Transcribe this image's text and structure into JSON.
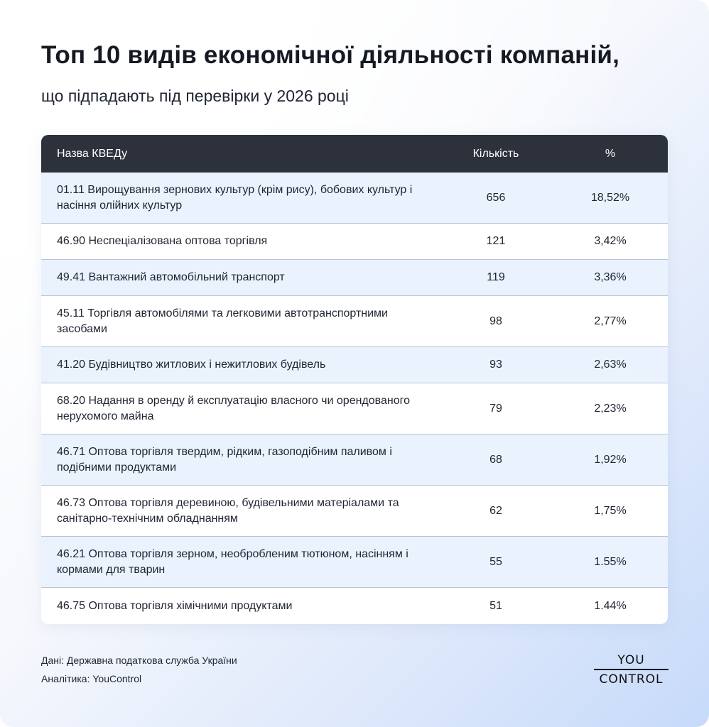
{
  "title": "Топ 10 видів економічної діяльності компаній,",
  "subtitle": "що підпадають під перевірки у 2026 році",
  "table": {
    "headers": [
      "Назва КВЕДу",
      "Кількість",
      "%"
    ],
    "rows": [
      {
        "name": "01.11 Вирощування зернових культур (крім рису), бобових культур і насіння олійних культур",
        "count": "656",
        "pct": "18,52%"
      },
      {
        "name": "46.90 Неспеціалізована оптова торгівля",
        "count": "121",
        "pct": "3,42%"
      },
      {
        "name": "49.41 Вантажний автомобільний транспорт",
        "count": "119",
        "pct": "3,36%"
      },
      {
        "name": "45.11 Торгівля автомобілями та легковими автотранспортними засобами",
        "count": "98",
        "pct": "2,77%"
      },
      {
        "name": "41.20 Будівництво житлових і нежитлових будівель",
        "count": "93",
        "pct": "2,63%"
      },
      {
        "name": "68.20 Надання в оренду й експлуатацію власного чи орендованого нерухомого майна",
        "count": "79",
        "pct": "2,23%"
      },
      {
        "name": "46.71 Оптова торгівля твердим, рідким, газоподібним паливом і подібними продуктами",
        "count": "68",
        "pct": "1,92%"
      },
      {
        "name": "46.73 Оптова торгівля деревиною, будівельними матеріалами та санітарно-технічним обладнанням",
        "count": "62",
        "pct": "1,75%"
      },
      {
        "name": "46.21 Оптова торгівля зерном, необробленим тютюном, насінням і кормами для тварин",
        "count": "55",
        "pct": "1.55%"
      },
      {
        "name": "46.75 Оптова торгівля хімічними продуктами",
        "count": "51",
        "pct": "1.44%"
      }
    ]
  },
  "footer": {
    "source": "Дані: Державна податкова служба України",
    "analytics": "Аналітика: YouControl"
  },
  "logo": {
    "top": "YOU",
    "bottom": "CONTROL"
  },
  "colors": {
    "header_bg": "#2c313b",
    "row_alt": "#eaf2fe"
  }
}
